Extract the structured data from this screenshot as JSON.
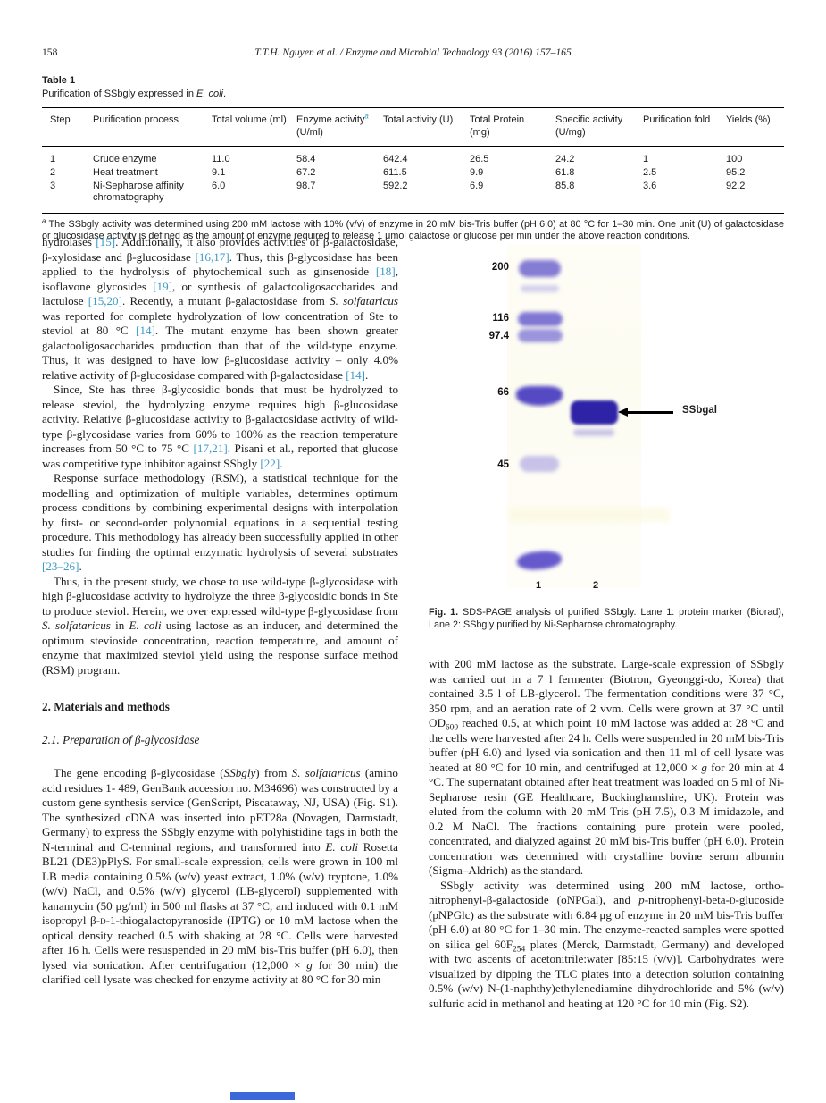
{
  "colors": {
    "citation": "#3a9bc8",
    "gel_band": "#564ac8",
    "gel_band_dark": "#2e22a6"
  },
  "header": {
    "page_number": "158",
    "running_head": "T.T.H. Nguyen et al. / Enzyme and Microbial Technology 93 (2016) 157–165"
  },
  "table": {
    "label": "Table 1",
    "caption": [
      [
        "Purification of SSbgly expressed in ",
        ""
      ],
      [
        "E. coli",
        "i"
      ],
      [
        ".",
        ""
      ]
    ],
    "columns": [
      [
        [
          "Step",
          ""
        ]
      ],
      [
        [
          "Purification process",
          ""
        ]
      ],
      [
        [
          "Total volume (ml)",
          ""
        ]
      ],
      [
        [
          "Enzyme activity",
          ""
        ],
        [
          "a",
          "supc"
        ],
        [
          " (U/ml)",
          ""
        ]
      ],
      [
        [
          "Total activity (U)",
          ""
        ]
      ],
      [
        [
          "Total Protein (mg)",
          ""
        ]
      ],
      [
        [
          "Specific activity (U/mg)",
          ""
        ]
      ],
      [
        [
          "Purification fold",
          ""
        ]
      ],
      [
        [
          "Yields (%)",
          ""
        ]
      ]
    ],
    "rows": [
      [
        "1",
        "Crude enzyme",
        "11.0",
        "58.4",
        "642.4",
        "26.5",
        "24.2",
        "1",
        "100"
      ],
      [
        "2",
        "Heat treatment",
        "9.1",
        "67.2",
        "611.5",
        "9.9",
        "61.8",
        "2.5",
        "95.2"
      ],
      [
        "3",
        "Ni-Sepharose affinity chromatography",
        "6.0",
        "98.7",
        "592.2",
        "6.9",
        "85.8",
        "3.6",
        "92.2"
      ]
    ],
    "footnote": [
      [
        "a",
        "sup"
      ],
      [
        " The SSbgly activity was determined using 200 mM lactose with 10% (v/v) of enzyme in 20 mM bis-Tris buffer (pH 6.0) at 80 °C for 1–30 min. One unit (U) of galactosidase or glucosidase activity is defined as the amount of enzyme required to release 1 μmol galactose or glucose per min under the above reaction conditions.",
        ""
      ]
    ]
  },
  "left_column": {
    "para1": [
      [
        "hydrolases ",
        ""
      ],
      [
        "[15]",
        "c"
      ],
      [
        ". Additionally, it also provides activities of β-galactosidase, β-xylosidase and β-glucosidase ",
        ""
      ],
      [
        "[16,17]",
        "c"
      ],
      [
        ". Thus, this β-glycosidase has been applied to the hydrolysis of phytochemical such as ginsenoside ",
        ""
      ],
      [
        "[18]",
        "c"
      ],
      [
        ", isoflavone glycosides ",
        ""
      ],
      [
        "[19]",
        "c"
      ],
      [
        ", or synthesis of galactooligosaccharides and lactulose ",
        ""
      ],
      [
        "[15,20]",
        "c"
      ],
      [
        ". Recently, a mutant β-galactosidase from ",
        ""
      ],
      [
        "S. solfataricus",
        "i"
      ],
      [
        " was reported for complete hydrolyzation of low concentration of Ste to steviol at 80 °C ",
        ""
      ],
      [
        "[14]",
        "c"
      ],
      [
        ". The mutant enzyme has been shown greater galactooligosaccharides production than that of the wild-type enzyme. Thus, it was designed to have low β-glucosidase activity – only 4.0% relative activity of β-glucosidase compared with β-galactosidase ",
        ""
      ],
      [
        "[14]",
        "c"
      ],
      [
        ".",
        ""
      ]
    ],
    "para2": [
      [
        "Since, Ste has three β-glycosidic bonds that must be hydrolyzed to release steviol, the hydrolyzing enzyme requires high β-glucosidase activity. Relative β-glucosidase activity to β-galactosidase activity of wild-type β-glycosidase varies from 60% to 100% as the reaction temperature increases from 50 °C to 75 °C ",
        ""
      ],
      [
        "[17,21]",
        "c"
      ],
      [
        ". Pisani et al., reported that glucose was competitive type inhibitor against SSbgly ",
        ""
      ],
      [
        "[22]",
        "c"
      ],
      [
        ".",
        ""
      ]
    ],
    "para3": [
      [
        "Response surface methodology (RSM), a statistical technique for the modelling and optimization of multiple variables, determines optimum process conditions by combining experimental designs with interpolation by first- or second-order polynomial equations in a sequential testing procedure. This methodology has already been successfully applied in other studies for finding the optimal enzymatic hydrolysis of several substrates ",
        ""
      ],
      [
        "[23–26]",
        "c"
      ],
      [
        ".",
        ""
      ]
    ],
    "para4": [
      [
        "Thus, in the present study, we chose to use wild-type β-glycosidase with high β-glucosidase activity to hydrolyze the three β-glycosidic bonds in Ste to produce steviol. Herein, we over expressed wild-type β-glycosidase from ",
        ""
      ],
      [
        "S. solfataricus",
        "i"
      ],
      [
        " in ",
        ""
      ],
      [
        "E. coli",
        "i"
      ],
      [
        " using lactose as an inducer, and determined the optimum stevioside concentration, reaction temperature, and amount of enzyme that maximized steviol yield using the response surface method (RSM) program.",
        ""
      ]
    ],
    "section_heading": "2. Materials and methods",
    "subsection_heading": "2.1. Preparation of β-glycosidase",
    "para5": [
      [
        "The gene encoding β-glycosidase (",
        ""
      ],
      [
        "SSbgly",
        "i"
      ],
      [
        ") from ",
        ""
      ],
      [
        "S. solfataricus",
        "i"
      ],
      [
        " (amino acid residues 1- 489, GenBank accession no. M34696) was constructed by a custom gene synthesis service (GenScript, Piscataway, NJ, USA) (Fig. S1). The synthesized cDNA was inserted into pET28a (Novagen, Darmstadt, Germany) to express the SSbgly enzyme with polyhistidine tags in both the N-terminal and C-terminal regions, and transformed into ",
        ""
      ],
      [
        "E. coli",
        "i"
      ],
      [
        " Rosetta BL21 (DE3)pPlyS. For small-scale expression, cells were grown in 100 ml LB media containing 0.5% (w/v) yeast extract, 1.0% (w/v) tryptone, 1.0% (w/v) NaCl, and 0.5% (w/v) glycerol (LB-glycerol) supplemented with kanamycin (50 μg/ml) in 500 ml flasks at 37 °C, and induced with 0.1 mM isopropyl β-",
        ""
      ],
      [
        "d",
        "sc"
      ],
      [
        "-1-thiogalactopyranoside (IPTG) or 10 mM lactose when the optical density reached 0.5 with shaking at 28 °C. Cells were harvested after 16 h. Cells were resuspended in 20 mM bis-Tris buffer (pH 6.0), then lysed via sonication. After centrifugation (12,000 × ",
        ""
      ],
      [
        "g",
        "i"
      ],
      [
        " for 30 min) the clarified cell lysate was checked for enzyme activity at 80 °C for 30 min",
        ""
      ]
    ]
  },
  "right_column": {
    "figure": {
      "marker_labels": [
        "200",
        "116",
        "97.4",
        "66",
        "45"
      ],
      "lane_labels": [
        "1",
        "2"
      ],
      "band_annotation": "SSbgal",
      "caption_label": "Fig. 1.",
      "caption_text": " SDS-PAGE analysis of purified SSbgly. Lane 1: protein marker (Biorad), Lane 2: SSbgly purified by Ni-Sepharose chromatography."
    },
    "para6": [
      [
        "with 200 mM lactose as the substrate. Large-scale expression of SSbgly was carried out in a 7 l fermenter (Biotron, Gyeonggi-do, Korea) that contained 3.5 l of LB-glycerol. The fermentation conditions were 37 °C, 350 rpm, and an aeration rate of 2 vvm. Cells were grown at 37 °C until OD",
        ""
      ],
      [
        "600",
        "sub"
      ],
      [
        " reached 0.5, at which point 10 mM lactose was added at 28 °C and the cells were harvested after 24 h. Cells were suspended in 20 mM bis-Tris buffer (pH 6.0) and lysed via sonication and then 11 ml of cell lysate was heated at 80 °C for 10 min, and centrifuged at 12,000 × ",
        ""
      ],
      [
        "g",
        "i"
      ],
      [
        " for 20 min at 4 °C. The supernatant obtained after heat treatment was loaded on 5 ml of Ni-Sepharose resin (GE Healthcare, Buckinghamshire, UK). Protein was eluted from the column with 20 mM Tris (pH 7.5), 0.3 M imidazole, and 0.2 M NaCl. The fractions containing pure protein were pooled, concentrated, and dialyzed against 20 mM bis-Tris buffer (pH 6.0). Protein concentration was determined with crystalline bovine serum albumin (Sigma–Aldrich) as the standard.",
        ""
      ]
    ],
    "para7": [
      [
        "SSbgly activity was determined using 200 mM lactose, ortho-nitrophenyl-β-galactoside (oNPGal), and ",
        ""
      ],
      [
        "p",
        "i"
      ],
      [
        "-nitrophenyl-beta-",
        ""
      ],
      [
        "d",
        "sc"
      ],
      [
        "-glucoside (pNPGlc) as the substrate with 6.84 μg of enzyme in 20 mM bis-Tris buffer (pH 6.0) at 80 °C for 1–30 min. The enzyme-reacted samples were spotted on silica gel 60F",
        ""
      ],
      [
        "254",
        "sub"
      ],
      [
        " plates (Merck, Darmstadt, Germany) and developed with two ascents of acetonitrile:water [85:15 (v/v)]. Carbohydrates were visualized by dipping the TLC plates into a detection solution containing 0.5% (w/v) N-(1-naphthy)ethylenediamine dihydrochloride and 5% (w/v) sulfuric acid in methanol and heating at 120 °C for 10 min (Fig. S2).",
        ""
      ]
    ]
  }
}
